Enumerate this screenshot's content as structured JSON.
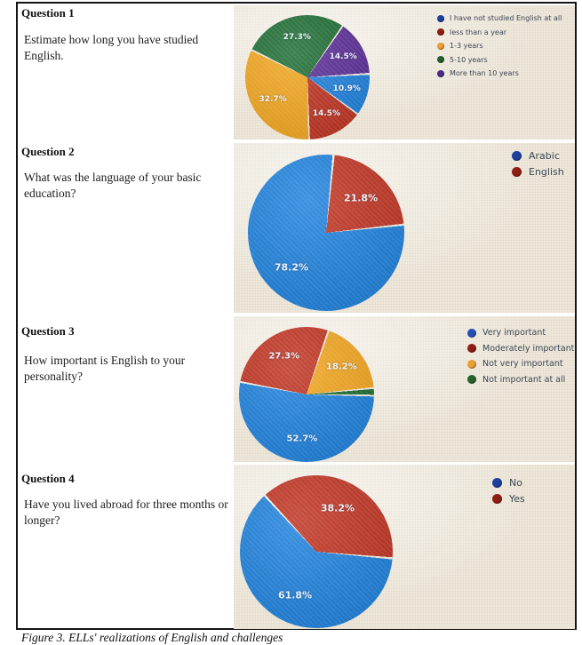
{
  "figure": {
    "caption": "Figure 3. ELLs' realizations of English and challenges"
  },
  "questions": [
    {
      "title": "Question 1",
      "body": "Estimate how long you have studied\nEnglish."
    },
    {
      "title": "Question 2",
      "body": "What was the language of your basic\neducation?"
    },
    {
      "title": "Question 3",
      "body": "How important is English to your\npersonality?"
    },
    {
      "title": "Question 4",
      "body": "Have you lived abroad for three months or\nlonger?"
    }
  ],
  "chart_data": [
    {
      "type": "pie",
      "question": "Question 1",
      "categories": [
        "I have not studied English at all",
        "less than a year",
        "1-3 years",
        "5-10 years",
        "More than 10 years"
      ],
      "values": [
        10.9,
        14.5,
        32.7,
        27.3,
        14.5
      ],
      "labels_shown": [
        "10.9%",
        "14.5%",
        "32.7%",
        "27.3%",
        "14.5%"
      ],
      "colors": [
        "#1d80dc",
        "#bf3220",
        "#f2a51d",
        "#1c6c32",
        "#5a2d96"
      ],
      "legend_colors": [
        "#1e3f9b",
        "#8e1d12",
        "#ea9f35",
        "#25612b",
        "#4c2a85"
      ],
      "legend_position": "right",
      "start_angle_deg": 87
    },
    {
      "type": "pie",
      "question": "Question 2",
      "categories": [
        "Arabic",
        "English"
      ],
      "values": [
        78.2,
        21.8
      ],
      "labels_shown": [
        "78.2%",
        "21.8%"
      ],
      "colors": [
        "#1d80dc",
        "#bf3220"
      ],
      "legend_colors": [
        "#1e3f9b",
        "#8e1d12"
      ],
      "legend_position": "right",
      "start_angle_deg": 84
    },
    {
      "type": "pie",
      "question": "Question 3",
      "categories": [
        "Very important",
        "Moderately important",
        "Not very important",
        "Not important at all"
      ],
      "values": [
        52.7,
        27.3,
        18.2,
        1.8
      ],
      "labels_shown": [
        "52.7%",
        "27.3%",
        "18.2%",
        ""
      ],
      "colors": [
        "#1d80dc",
        "#bf3220",
        "#f2a51d",
        "#1c6c32"
      ],
      "legend_colors": [
        "#2450b4",
        "#8e1d12",
        "#ea9f35",
        "#25612b"
      ],
      "legend_position": "right",
      "start_angle_deg": 91
    },
    {
      "type": "pie",
      "question": "Question 4",
      "categories": [
        "No",
        "Yes"
      ],
      "values": [
        61.8,
        38.2
      ],
      "labels_shown": [
        "61.8%",
        "38.2%"
      ],
      "colors": [
        "#1d80dc",
        "#bf3220"
      ],
      "legend_colors": [
        "#1e3f9b",
        "#8e1d12"
      ],
      "legend_position": "right",
      "start_angle_deg": 95
    }
  ]
}
